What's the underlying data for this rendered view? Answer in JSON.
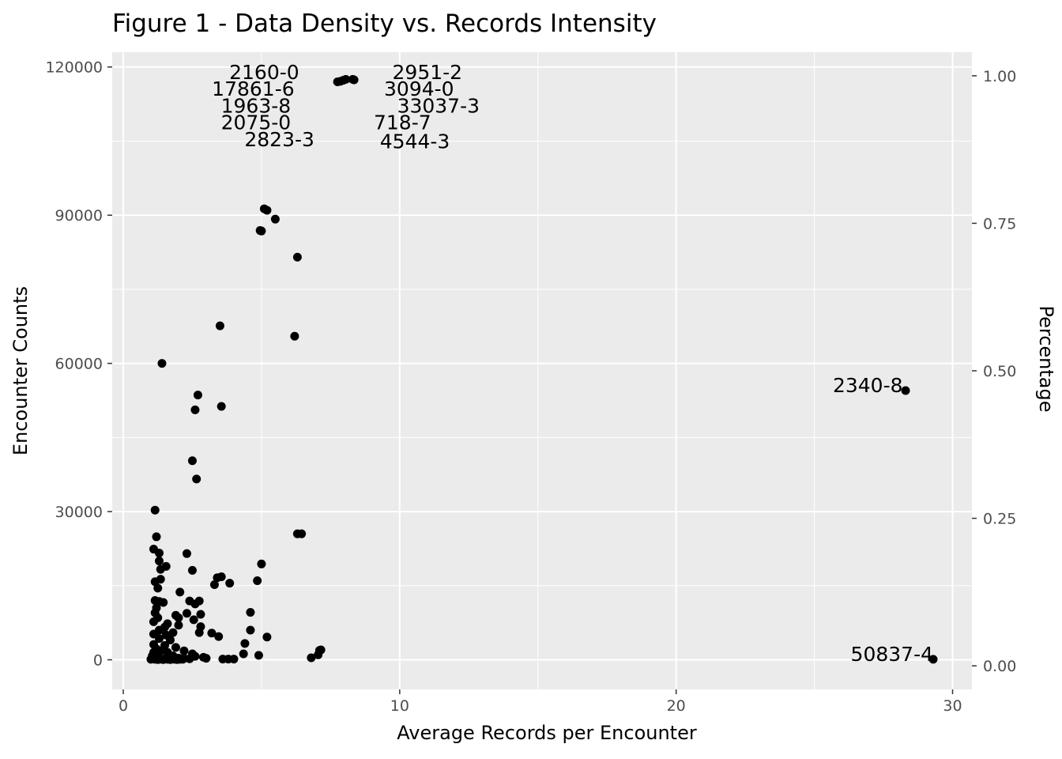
{
  "chart_data": {
    "type": "scatter",
    "title": "Figure 1 - Data Density vs. Records Intensity",
    "xlabel": "Average Records per Encounter",
    "ylabel": "Encounter Counts",
    "y2label": "Percentage",
    "xlim": [
      -0.4,
      30.7
    ],
    "ylim": [
      -6000,
      123000
    ],
    "y2lim": [
      -0.04,
      1.04
    ],
    "x_ticks": [
      0,
      10,
      20,
      30
    ],
    "y_ticks": [
      0,
      30000,
      60000,
      90000,
      120000
    ],
    "y2_ticks": [
      "0.00",
      "0.25",
      "0.50",
      "0.75",
      "1.00"
    ],
    "grid": true,
    "background": "#ebebeb",
    "grid_color": "#ffffff",
    "point_color": "#000000",
    "points": [
      {
        "x": 5.1,
        "y": 91300
      },
      {
        "x": 5.2,
        "y": 91000
      },
      {
        "x": 5.5,
        "y": 89200
      },
      {
        "x": 5.0,
        "y": 86800
      },
      {
        "x": 4.95,
        "y": 86900
      },
      {
        "x": 6.3,
        "y": 81500
      },
      {
        "x": 3.5,
        "y": 67600
      },
      {
        "x": 6.2,
        "y": 65500
      },
      {
        "x": 1.4,
        "y": 60000
      },
      {
        "x": 2.7,
        "y": 53600
      },
      {
        "x": 3.55,
        "y": 51300
      },
      {
        "x": 2.6,
        "y": 50600
      },
      {
        "x": 2.5,
        "y": 40300
      },
      {
        "x": 2.65,
        "y": 36600
      },
      {
        "x": 1.15,
        "y": 30300
      },
      {
        "x": 6.3,
        "y": 25500
      },
      {
        "x": 6.45,
        "y": 25500
      },
      {
        "x": 1.2,
        "y": 24900
      },
      {
        "x": 1.1,
        "y": 22400
      },
      {
        "x": 1.3,
        "y": 21600
      },
      {
        "x": 2.3,
        "y": 21500
      },
      {
        "x": 1.3,
        "y": 20000
      },
      {
        "x": 5.0,
        "y": 19400
      },
      {
        "x": 1.55,
        "y": 18900
      },
      {
        "x": 1.35,
        "y": 18300
      },
      {
        "x": 2.5,
        "y": 18100
      },
      {
        "x": 3.55,
        "y": 16800
      },
      {
        "x": 3.4,
        "y": 16600
      },
      {
        "x": 1.35,
        "y": 16300
      },
      {
        "x": 1.15,
        "y": 15800
      },
      {
        "x": 3.85,
        "y": 15500
      },
      {
        "x": 4.85,
        "y": 16000
      },
      {
        "x": 3.3,
        "y": 15200
      },
      {
        "x": 1.25,
        "y": 14500
      },
      {
        "x": 2.05,
        "y": 13700
      },
      {
        "x": 1.15,
        "y": 12000
      },
      {
        "x": 1.3,
        "y": 11800
      },
      {
        "x": 1.45,
        "y": 11600
      },
      {
        "x": 2.4,
        "y": 11900
      },
      {
        "x": 2.75,
        "y": 11900
      },
      {
        "x": 2.6,
        "y": 11300
      },
      {
        "x": 1.2,
        "y": 10500
      },
      {
        "x": 1.15,
        "y": 9500
      },
      {
        "x": 2.3,
        "y": 9400
      },
      {
        "x": 2.8,
        "y": 9200
      },
      {
        "x": 4.6,
        "y": 9600
      },
      {
        "x": 1.9,
        "y": 9000
      },
      {
        "x": 1.25,
        "y": 8500
      },
      {
        "x": 2.0,
        "y": 8500
      },
      {
        "x": 2.55,
        "y": 8100
      },
      {
        "x": 1.1,
        "y": 7700
      },
      {
        "x": 1.6,
        "y": 7300
      },
      {
        "x": 2.0,
        "y": 7000
      },
      {
        "x": 2.8,
        "y": 6700
      },
      {
        "x": 1.5,
        "y": 6600
      },
      {
        "x": 1.3,
        "y": 6000
      },
      {
        "x": 4.6,
        "y": 6000
      },
      {
        "x": 2.75,
        "y": 5500
      },
      {
        "x": 1.8,
        "y": 5500
      },
      {
        "x": 3.2,
        "y": 5400
      },
      {
        "x": 1.1,
        "y": 5200
      },
      {
        "x": 1.55,
        "y": 5000
      },
      {
        "x": 3.45,
        "y": 4700
      },
      {
        "x": 5.2,
        "y": 4600
      },
      {
        "x": 1.3,
        "y": 4300
      },
      {
        "x": 1.7,
        "y": 4000
      },
      {
        "x": 4.4,
        "y": 3300
      },
      {
        "x": 1.1,
        "y": 3100
      },
      {
        "x": 1.5,
        "y": 2900
      },
      {
        "x": 1.9,
        "y": 2500
      },
      {
        "x": 1.2,
        "y": 2200
      },
      {
        "x": 7.1,
        "y": 1900
      },
      {
        "x": 7.15,
        "y": 2000
      },
      {
        "x": 1.35,
        "y": 1800
      },
      {
        "x": 2.2,
        "y": 1800
      },
      {
        "x": 1.1,
        "y": 1500
      },
      {
        "x": 1.6,
        "y": 1500
      },
      {
        "x": 2.5,
        "y": 1200
      },
      {
        "x": 4.35,
        "y": 1200
      },
      {
        "x": 1.2,
        "y": 1000
      },
      {
        "x": 7.05,
        "y": 1000
      },
      {
        "x": 4.9,
        "y": 900
      },
      {
        "x": 1.05,
        "y": 800
      },
      {
        "x": 1.8,
        "y": 800
      },
      {
        "x": 2.6,
        "y": 700
      },
      {
        "x": 1.1,
        "y": 500
      },
      {
        "x": 2.9,
        "y": 500
      },
      {
        "x": 6.8,
        "y": 400
      },
      {
        "x": 1.3,
        "y": 400
      },
      {
        "x": 2.0,
        "y": 350
      },
      {
        "x": 2.2,
        "y": 300
      },
      {
        "x": 3.0,
        "y": 300
      },
      {
        "x": 1.05,
        "y": 200
      },
      {
        "x": 1.5,
        "y": 200
      },
      {
        "x": 1.75,
        "y": 200
      },
      {
        "x": 2.4,
        "y": 200
      },
      {
        "x": 3.6,
        "y": 150
      },
      {
        "x": 3.8,
        "y": 150
      },
      {
        "x": 4.0,
        "y": 150
      },
      {
        "x": 1.0,
        "y": 100
      },
      {
        "x": 1.15,
        "y": 100
      },
      {
        "x": 1.3,
        "y": 100
      },
      {
        "x": 1.4,
        "y": 100
      },
      {
        "x": 1.6,
        "y": 100
      },
      {
        "x": 1.85,
        "y": 100
      },
      {
        "x": 2.05,
        "y": 100
      },
      {
        "x": 2.15,
        "y": 100
      },
      {
        "x": 1.25,
        "y": 50
      },
      {
        "x": 1.45,
        "y": 50
      },
      {
        "x": 1.7,
        "y": 50
      },
      {
        "x": 1.95,
        "y": 50
      },
      {
        "x": 7.75,
        "y": 117000
      },
      {
        "x": 7.85,
        "y": 117100
      },
      {
        "x": 7.95,
        "y": 117300
      },
      {
        "x": 8.05,
        "y": 117500
      },
      {
        "x": 8.3,
        "y": 117500
      },
      {
        "x": 8.35,
        "y": 117400
      },
      {
        "x": 28.3,
        "y": 54500
      },
      {
        "x": 29.3,
        "y": 100
      }
    ],
    "annotations": [
      {
        "text": "2160-0",
        "x": 5.1,
        "y": 119000,
        "anchor": "middle"
      },
      {
        "text": "17861-6",
        "x": 4.7,
        "y": 115600,
        "anchor": "middle"
      },
      {
        "text": "1963-8",
        "x": 4.8,
        "y": 112200,
        "anchor": "middle"
      },
      {
        "text": "2075-0",
        "x": 4.8,
        "y": 108800,
        "anchor": "middle"
      },
      {
        "text": "2823-3",
        "x": 5.65,
        "y": 105400,
        "anchor": "middle"
      },
      {
        "text": "2951-2",
        "x": 11.0,
        "y": 119000,
        "anchor": "middle"
      },
      {
        "text": "3094-0",
        "x": 10.7,
        "y": 115600,
        "anchor": "middle"
      },
      {
        "text": "33037-3",
        "x": 11.4,
        "y": 112200,
        "anchor": "middle"
      },
      {
        "text": "718-7",
        "x": 10.1,
        "y": 108800,
        "anchor": "middle"
      },
      {
        "text": "4544-3",
        "x": 10.55,
        "y": 105000,
        "anchor": "middle"
      },
      {
        "text": "2340-8",
        "x": 28.2,
        "y": 55600,
        "anchor": "end"
      },
      {
        "text": "50837-4",
        "x": 29.3,
        "y": 1200,
        "anchor": "end"
      }
    ]
  }
}
